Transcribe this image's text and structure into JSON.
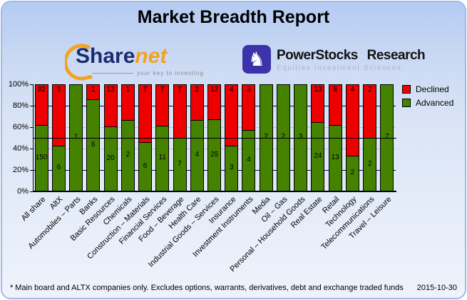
{
  "title": "Market Breadth Report",
  "logos": {
    "sharenet": {
      "part1": "Share",
      "part2": "net",
      "tagline": "your key to investing",
      "color_primary": "#1b2d72",
      "color_accent": "#f2a41a"
    },
    "powerstocks": {
      "line1": "PowerStocks Research",
      "line2": "Equities Investment Sciences",
      "icon": "knight-chess-icon",
      "chip_color": "#3b33aa"
    }
  },
  "chart_data": {
    "type": "bar",
    "stacked": true,
    "normalized": "percent_of_total",
    "ylim": [
      0,
      100
    ],
    "yticks": [
      "100%",
      "80%",
      "60%",
      "40%",
      "20%",
      "0%"
    ],
    "gridlines": [
      {
        "pct": 80,
        "color": "#000080"
      },
      {
        "pct": 60,
        "color": "#c0c0c0"
      },
      {
        "pct": 40,
        "color": "#c0c0c0"
      },
      {
        "pct": 20,
        "color": "#000080"
      }
    ],
    "midline": {
      "pct": 50,
      "color": "#000000"
    },
    "legend_position": "right",
    "legend": [
      {
        "label": "Declined",
        "color": "#ee0000"
      },
      {
        "label": "Advanced",
        "color": "#448200"
      }
    ],
    "categories": [
      "All share",
      "AltX",
      "Automobiles – Parts",
      "Banks",
      "Basic Resources",
      "Chemicals",
      "Construction – Materials",
      "Financial Services",
      "Food – Beverage",
      "Health Care",
      "Industrial Goods – Services",
      "Insurance",
      "Investment Instruments",
      "Media",
      "Oil – Gas",
      "Personal – Household Goods",
      "Real Estate",
      "Retail",
      "Technology",
      "Telecommunications",
      "Travel – Leisure"
    ],
    "series": [
      {
        "name": "Declined",
        "color": "#ee0000",
        "values": [
          92,
          8,
          0,
          1,
          13,
          1,
          7,
          7,
          7,
          2,
          12,
          4,
          3,
          0,
          0,
          0,
          13,
          8,
          4,
          2,
          0
        ]
      },
      {
        "name": "Advanced",
        "color": "#448200",
        "values": [
          150,
          6,
          1,
          6,
          20,
          2,
          6,
          11,
          7,
          4,
          25,
          3,
          4,
          2,
          2,
          3,
          24,
          13,
          2,
          2,
          7
        ]
      }
    ]
  },
  "footer": {
    "note": "* Main board and ALTX companies only. Excludes options, warrants, derivatives, debt and exchange traded funds",
    "date": "2015-10-30"
  }
}
